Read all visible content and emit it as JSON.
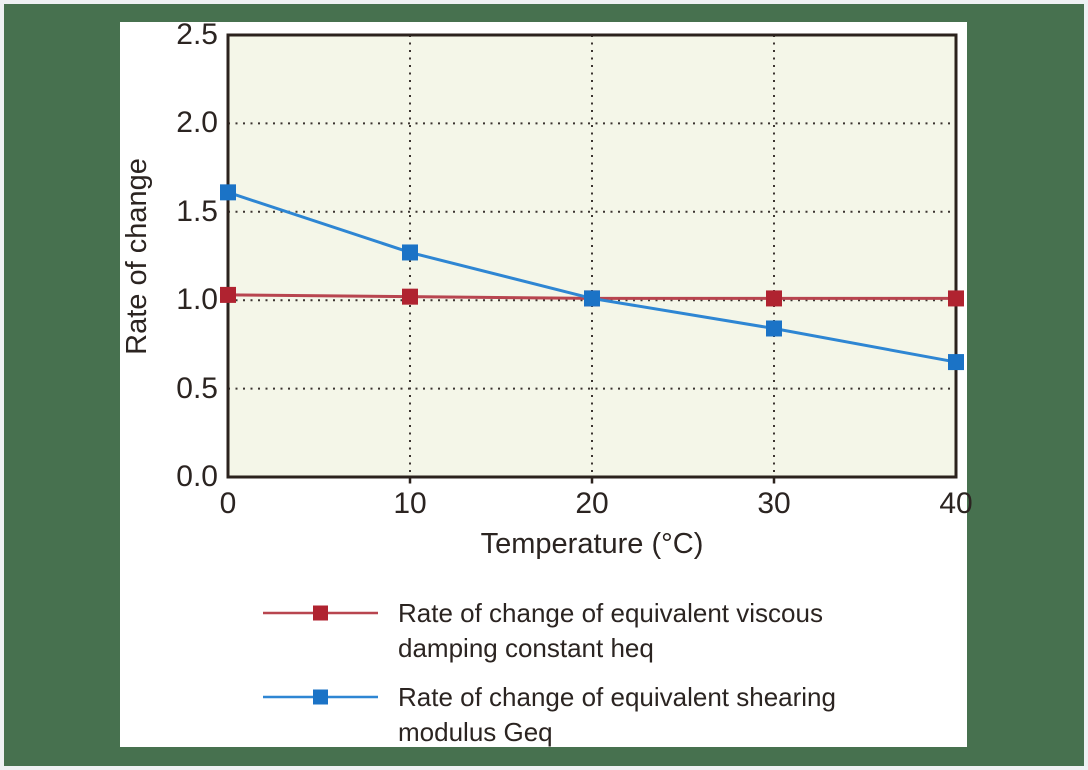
{
  "frame": {
    "outer_background": "#47714f",
    "edge_color": "#eef1f3",
    "panel_background": "#ffffff",
    "text_color": "#2b2421"
  },
  "chart_data": {
    "type": "line",
    "title": "",
    "xlabel": "Temperature (°C)",
    "ylabel": "Rate of change",
    "x": [
      0,
      10,
      20,
      30,
      40
    ],
    "xlim": [
      0,
      40
    ],
    "ylim": [
      0,
      2.5
    ],
    "xtick_values": [
      0,
      10,
      20,
      30,
      40
    ],
    "xtick_labels": [
      "0",
      "10",
      "20",
      "30",
      "40"
    ],
    "ytick_values": [
      0,
      0.5,
      1.0,
      1.5,
      2.0,
      2.5
    ],
    "ytick_labels": [
      "0.0",
      "0.5",
      "1.0",
      "1.5",
      "2.0",
      "2.5"
    ],
    "grid": "dotted",
    "grid_color": "#3b3430",
    "plot_background": "#f4f6e8",
    "frame_color": "#2b221d",
    "legend_position": "below",
    "series": [
      {
        "name": "Rate of change of equivalent viscous damping constant heq",
        "values": [
          1.03,
          1.02,
          1.01,
          1.01,
          1.01
        ],
        "line_color": "#b8454f",
        "marker_color": "#b02330",
        "marker": "square"
      },
      {
        "name": "Rate of change of equivalent shearing modulus Geq",
        "values": [
          1.61,
          1.27,
          1.01,
          0.84,
          0.65
        ],
        "line_color": "#2e86d3",
        "marker_color": "#1b73c6",
        "marker": "square"
      }
    ]
  },
  "legend": {
    "items": [
      {
        "line1": "Rate of change of equivalent viscous",
        "line2": "damping constant heq"
      },
      {
        "line1": "Rate of change of equivalent shearing",
        "line2": "modulus Geq"
      }
    ]
  }
}
